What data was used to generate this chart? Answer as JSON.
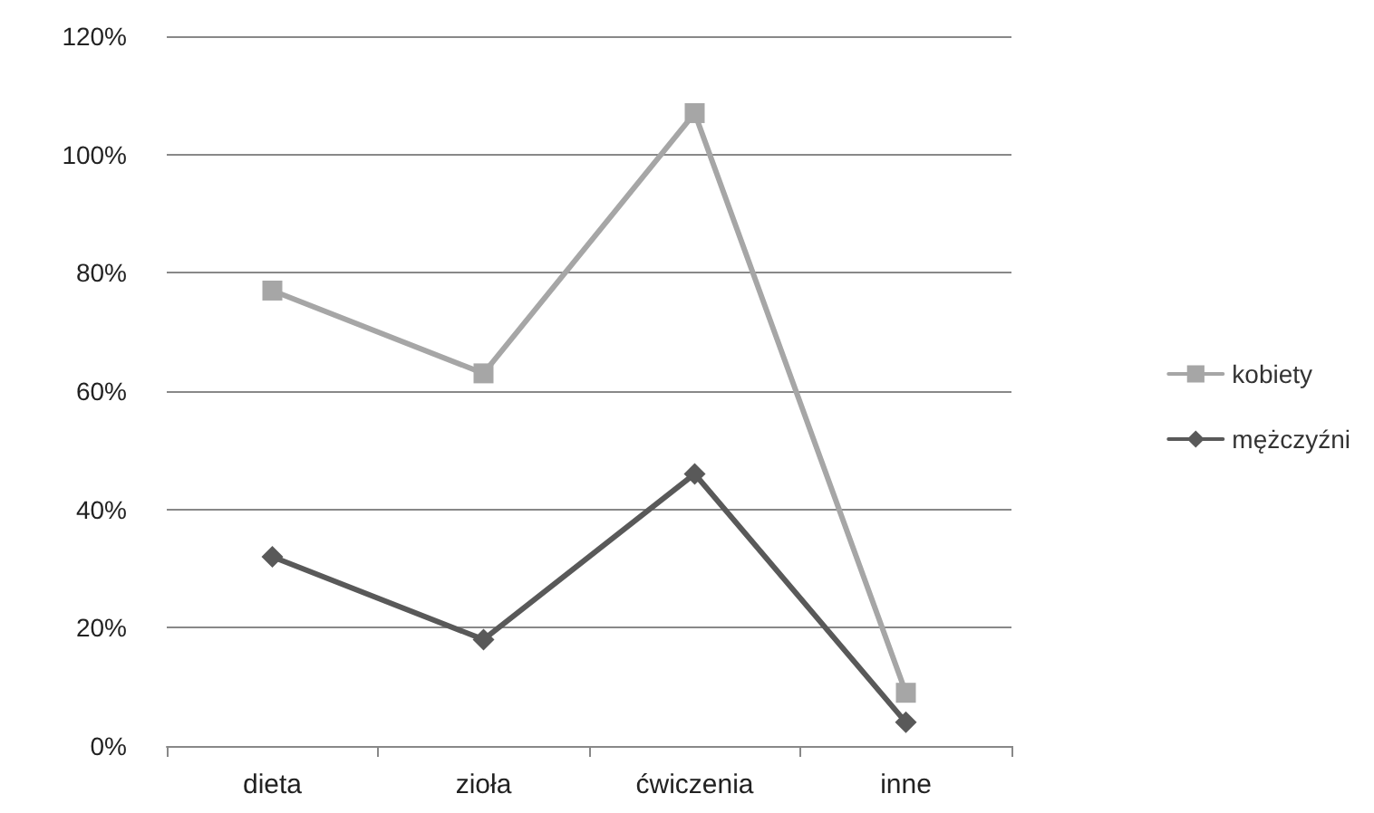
{
  "chart_data": {
    "type": "line",
    "categories": [
      "dieta",
      "zioła",
      "ćwiczenia",
      "inne"
    ],
    "series": [
      {
        "name": "kobiety",
        "color": "#a6a6a6",
        "marker": "square",
        "values": [
          77,
          63,
          107,
          9
        ]
      },
      {
        "name": "mężczyźni",
        "color": "#595959",
        "marker": "diamond",
        "values": [
          32,
          18,
          46,
          4
        ]
      }
    ],
    "ylim": [
      0,
      120
    ],
    "yticks": [
      {
        "value": 0,
        "label": "0%"
      },
      {
        "value": 20,
        "label": "20%"
      },
      {
        "value": 40,
        "label": "40%"
      },
      {
        "value": 60,
        "label": "60%"
      },
      {
        "value": 80,
        "label": "80%"
      },
      {
        "value": 100,
        "label": "100%"
      },
      {
        "value": 120,
        "label": "120%"
      }
    ],
    "grid": "y",
    "legend": "right",
    "line_style": "solid"
  }
}
